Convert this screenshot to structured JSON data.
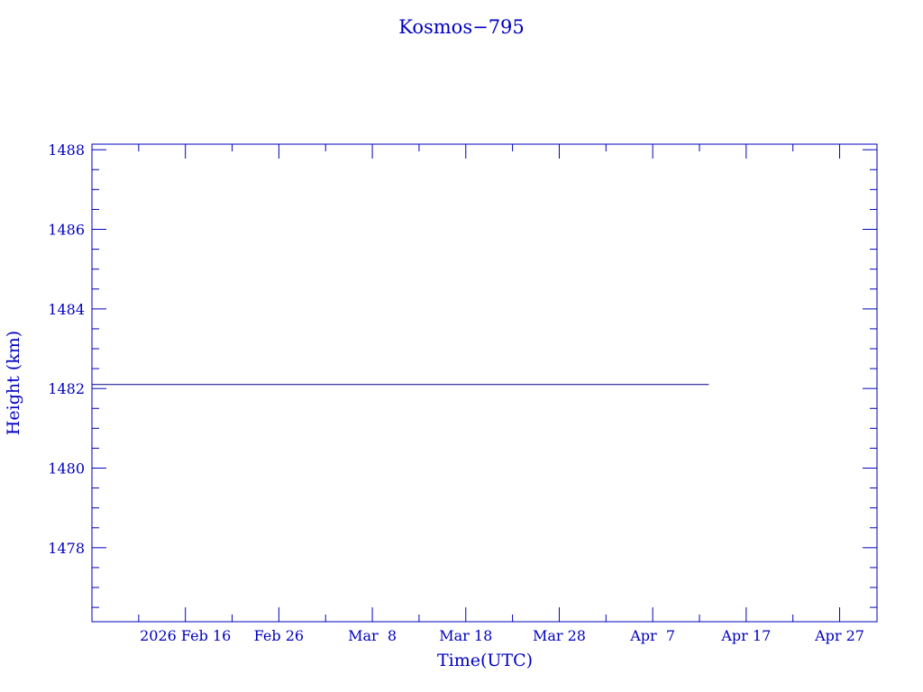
{
  "chart_data": {
    "type": "line",
    "title": "Kosmos−795",
    "xlabel": "Time(UTC)",
    "ylabel": "Height (km)",
    "xlim": [
      "2026-02-06",
      "2026-05-01"
    ],
    "ylim": [
      1476.14,
      1488.14
    ],
    "x_tick_labels": [
      "2026 Feb 16",
      "Feb 26",
      "Mar  8",
      "Mar 18",
      "Mar 28",
      "Apr  7",
      "Apr 17",
      "Apr 27"
    ],
    "x_ticks": [
      "2026-02-16",
      "2026-02-26",
      "2026-03-08",
      "2026-03-18",
      "2026-03-28",
      "2026-04-07",
      "2026-04-17",
      "2026-04-27"
    ],
    "y_ticks": [
      1478,
      1480,
      1482,
      1484,
      1486,
      1488
    ],
    "y_tick_labels": [
      "1478",
      "1480",
      "1482",
      "1484",
      "1486",
      "1488"
    ],
    "grid": false,
    "series": [
      {
        "x": [
          "2026-02-06",
          "2026-04-13"
        ],
        "y": [
          1482.1,
          1482.1
        ]
      }
    ],
    "colors": {
      "axis": "#0000c0",
      "text": "#0000c0",
      "line": "#000080"
    }
  }
}
